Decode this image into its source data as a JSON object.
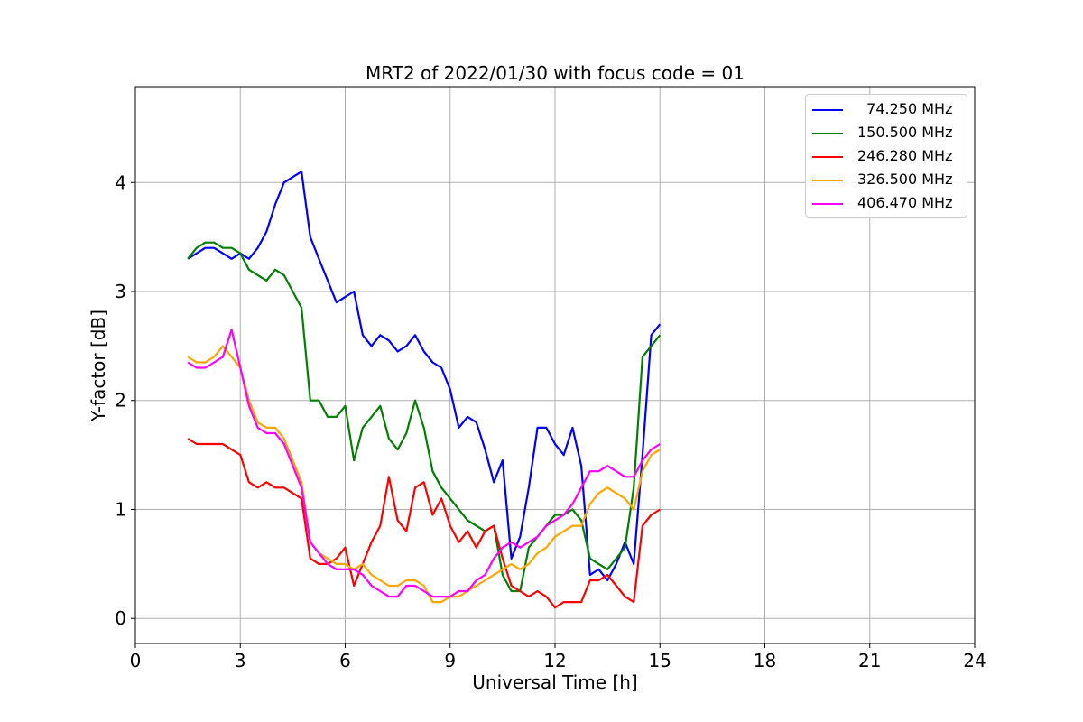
{
  "chart_data": {
    "type": "line",
    "title": "MRT2 of 2022/01/30 with focus code = 01",
    "xlabel": "Universal Time [h]",
    "ylabel": "Y-factor [dB]",
    "xlim": [
      0,
      24
    ],
    "ylim": [
      -0.23,
      4.88
    ],
    "xticks": [
      0,
      3,
      6,
      9,
      12,
      15,
      18,
      21,
      24
    ],
    "yticks": [
      0,
      1,
      2,
      3,
      4
    ],
    "grid": true,
    "legend_position": "top-right",
    "series": [
      {
        "name": "  74.250 MHz",
        "color": "#0000ff",
        "x": [
          1.5,
          1.75,
          2.0,
          2.25,
          2.5,
          2.75,
          3.0,
          3.25,
          3.5,
          3.75,
          4.0,
          4.25,
          4.5,
          4.75,
          5.0,
          5.25,
          5.5,
          5.75,
          6.0,
          6.25,
          6.5,
          6.75,
          7.0,
          7.25,
          7.5,
          7.75,
          8.0,
          8.25,
          8.5,
          8.75,
          9.0,
          9.25,
          9.5,
          9.75,
          10.0,
          10.25,
          10.5,
          10.75,
          11.0,
          11.25,
          11.5,
          11.75,
          12.0,
          12.25,
          12.5,
          12.75,
          13.0,
          13.25,
          13.5,
          13.75,
          14.0,
          14.25,
          14.5,
          14.75,
          15.0
        ],
        "y": [
          3.3,
          3.35,
          3.4,
          3.4,
          3.35,
          3.3,
          3.35,
          3.3,
          3.4,
          3.55,
          3.8,
          4.0,
          4.05,
          4.1,
          3.5,
          3.3,
          3.1,
          2.9,
          2.95,
          3.0,
          2.6,
          2.5,
          2.6,
          2.55,
          2.45,
          2.5,
          2.6,
          2.45,
          2.35,
          2.3,
          2.1,
          1.75,
          1.85,
          1.8,
          1.55,
          1.25,
          1.45,
          0.55,
          0.75,
          1.2,
          1.75,
          1.75,
          1.6,
          1.5,
          1.75,
          1.4,
          0.4,
          0.45,
          0.35,
          0.5,
          0.7,
          0.5,
          1.5,
          2.6,
          2.7
        ]
      },
      {
        "name": "150.500 MHz",
        "color": "#008000",
        "x": [
          1.5,
          1.75,
          2.0,
          2.25,
          2.5,
          2.75,
          3.0,
          3.25,
          3.5,
          3.75,
          4.0,
          4.25,
          4.5,
          4.75,
          5.0,
          5.25,
          5.5,
          5.75,
          6.0,
          6.25,
          6.5,
          6.75,
          7.0,
          7.25,
          7.5,
          7.75,
          8.0,
          8.25,
          8.5,
          8.75,
          9.0,
          9.25,
          9.5,
          9.75,
          10.0,
          10.25,
          10.5,
          10.75,
          11.0,
          11.25,
          11.5,
          11.75,
          12.0,
          12.25,
          12.5,
          12.75,
          13.0,
          13.25,
          13.5,
          13.75,
          14.0,
          14.25,
          14.5,
          14.75,
          15.0
        ],
        "y": [
          3.3,
          3.4,
          3.45,
          3.45,
          3.4,
          3.4,
          3.35,
          3.2,
          3.15,
          3.1,
          3.2,
          3.15,
          3.0,
          2.85,
          2.0,
          2.0,
          1.85,
          1.85,
          1.95,
          1.45,
          1.75,
          1.85,
          1.95,
          1.65,
          1.55,
          1.7,
          2.0,
          1.75,
          1.35,
          1.2,
          1.1,
          1.0,
          0.9,
          0.85,
          0.8,
          0.85,
          0.4,
          0.25,
          0.25,
          0.65,
          0.75,
          0.85,
          0.95,
          0.95,
          1.0,
          0.9,
          0.55,
          0.5,
          0.45,
          0.55,
          0.65,
          1.2,
          2.4,
          2.5,
          2.6
        ]
      },
      {
        "name": "246.280 MHz",
        "color": "#ff0000",
        "x": [
          1.5,
          1.75,
          2.0,
          2.25,
          2.5,
          2.75,
          3.0,
          3.25,
          3.5,
          3.75,
          4.0,
          4.25,
          4.5,
          4.75,
          5.0,
          5.25,
          5.5,
          5.75,
          6.0,
          6.25,
          6.5,
          6.75,
          7.0,
          7.25,
          7.5,
          7.75,
          8.0,
          8.25,
          8.5,
          8.75,
          9.0,
          9.25,
          9.5,
          9.75,
          10.0,
          10.25,
          10.5,
          10.75,
          11.0,
          11.25,
          11.5,
          11.75,
          12.0,
          12.25,
          12.5,
          12.75,
          13.0,
          13.25,
          13.5,
          13.75,
          14.0,
          14.25,
          14.5,
          14.75,
          15.0
        ],
        "y": [
          1.65,
          1.6,
          1.6,
          1.6,
          1.6,
          1.55,
          1.5,
          1.25,
          1.2,
          1.25,
          1.2,
          1.2,
          1.15,
          1.1,
          0.55,
          0.5,
          0.5,
          0.55,
          0.65,
          0.3,
          0.5,
          0.7,
          0.85,
          1.3,
          0.9,
          0.8,
          1.2,
          1.25,
          0.95,
          1.1,
          0.85,
          0.7,
          0.8,
          0.65,
          0.8,
          0.85,
          0.55,
          0.3,
          0.25,
          0.2,
          0.25,
          0.2,
          0.1,
          0.15,
          0.15,
          0.15,
          0.35,
          0.35,
          0.4,
          0.3,
          0.2,
          0.15,
          0.85,
          0.95,
          1.0
        ]
      },
      {
        "name": "326.500 MHz",
        "color": "#ffa500",
        "x": [
          1.5,
          1.75,
          2.0,
          2.25,
          2.5,
          2.75,
          3.0,
          3.25,
          3.5,
          3.75,
          4.0,
          4.25,
          4.5,
          4.75,
          5.0,
          5.25,
          5.5,
          5.75,
          6.0,
          6.25,
          6.5,
          6.75,
          7.0,
          7.25,
          7.5,
          7.75,
          8.0,
          8.25,
          8.5,
          8.75,
          9.0,
          9.25,
          9.5,
          9.75,
          10.0,
          10.25,
          10.5,
          10.75,
          11.0,
          11.25,
          11.5,
          11.75,
          12.0,
          12.25,
          12.5,
          12.75,
          13.0,
          13.25,
          13.5,
          13.75,
          14.0,
          14.25,
          14.5,
          14.75,
          15.0
        ],
        "y": [
          2.4,
          2.35,
          2.35,
          2.4,
          2.5,
          2.4,
          2.3,
          2.0,
          1.8,
          1.75,
          1.75,
          1.65,
          1.45,
          1.25,
          0.7,
          0.6,
          0.55,
          0.5,
          0.5,
          0.45,
          0.5,
          0.4,
          0.35,
          0.3,
          0.3,
          0.35,
          0.35,
          0.3,
          0.15,
          0.15,
          0.2,
          0.2,
          0.25,
          0.3,
          0.35,
          0.4,
          0.45,
          0.5,
          0.45,
          0.5,
          0.6,
          0.65,
          0.75,
          0.8,
          0.85,
          0.85,
          1.05,
          1.15,
          1.2,
          1.15,
          1.1,
          1.0,
          1.35,
          1.5,
          1.55
        ]
      },
      {
        "name": "406.470 MHz",
        "color": "#ff00ff",
        "x": [
          1.5,
          1.75,
          2.0,
          2.25,
          2.5,
          2.75,
          3.0,
          3.25,
          3.5,
          3.75,
          4.0,
          4.25,
          4.5,
          4.75,
          5.0,
          5.25,
          5.5,
          5.75,
          6.0,
          6.25,
          6.5,
          6.75,
          7.0,
          7.25,
          7.5,
          7.75,
          8.0,
          8.25,
          8.5,
          8.75,
          9.0,
          9.25,
          9.5,
          9.75,
          10.0,
          10.25,
          10.5,
          10.75,
          11.0,
          11.25,
          11.5,
          11.75,
          12.0,
          12.25,
          12.5,
          12.75,
          13.0,
          13.25,
          13.5,
          13.75,
          14.0,
          14.25,
          14.5,
          14.75,
          15.0
        ],
        "y": [
          2.35,
          2.3,
          2.3,
          2.35,
          2.4,
          2.65,
          2.3,
          1.95,
          1.75,
          1.7,
          1.7,
          1.6,
          1.4,
          1.2,
          0.7,
          0.6,
          0.5,
          0.45,
          0.45,
          0.45,
          0.4,
          0.3,
          0.25,
          0.2,
          0.2,
          0.3,
          0.3,
          0.25,
          0.2,
          0.2,
          0.2,
          0.25,
          0.25,
          0.35,
          0.4,
          0.55,
          0.65,
          0.7,
          0.65,
          0.7,
          0.75,
          0.85,
          0.9,
          0.95,
          1.05,
          1.2,
          1.35,
          1.35,
          1.4,
          1.35,
          1.3,
          1.3,
          1.45,
          1.55,
          1.6
        ]
      }
    ]
  }
}
